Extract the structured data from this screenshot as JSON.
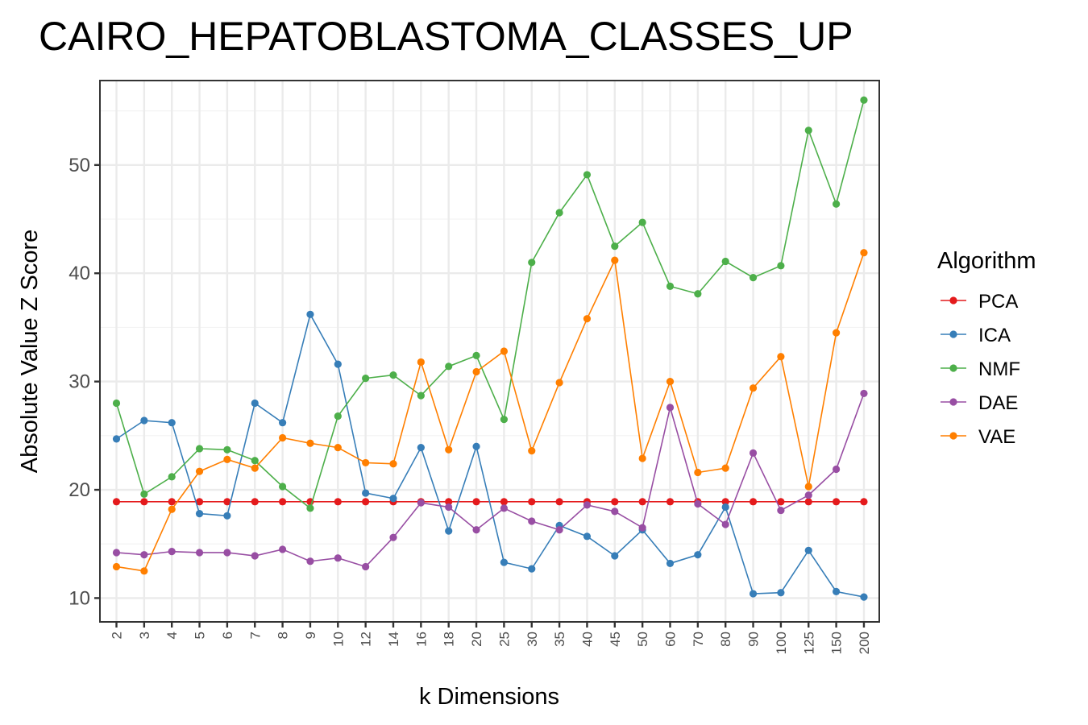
{
  "chart_data": {
    "type": "line",
    "title": "CAIRO_HEPATOBLASTOMA_CLASSES_UP",
    "xlabel": "k Dimensions",
    "ylabel": "Absolute Value Z Score",
    "categories": [
      "2",
      "3",
      "4",
      "5",
      "6",
      "7",
      "8",
      "9",
      "10",
      "12",
      "14",
      "16",
      "18",
      "20",
      "25",
      "30",
      "35",
      "40",
      "45",
      "50",
      "60",
      "70",
      "80",
      "90",
      "100",
      "125",
      "150",
      "200"
    ],
    "ylim": [
      7.8,
      57.8
    ],
    "yticks": [
      10,
      20,
      30,
      40,
      50
    ],
    "grid": true,
    "legend": {
      "title": "Algorithm",
      "position": "right"
    },
    "series": [
      {
        "name": "PCA",
        "color": "#e41a1c",
        "values": [
          18.9,
          18.9,
          18.9,
          18.9,
          18.9,
          18.9,
          18.9,
          18.9,
          18.9,
          18.9,
          18.9,
          18.9,
          18.9,
          18.9,
          18.9,
          18.9,
          18.9,
          18.9,
          18.9,
          18.9,
          18.9,
          18.9,
          18.9,
          18.9,
          18.9,
          18.9,
          18.9,
          18.9
        ]
      },
      {
        "name": "ICA",
        "color": "#377eb8",
        "values": [
          24.7,
          26.4,
          26.2,
          17.8,
          17.6,
          28.0,
          26.2,
          36.2,
          31.6,
          19.7,
          19.2,
          23.9,
          16.2,
          24.0,
          13.3,
          12.7,
          16.7,
          15.7,
          13.9,
          16.3,
          13.2,
          14.0,
          18.4,
          10.4,
          10.5,
          14.4,
          10.6,
          10.1
        ]
      },
      {
        "name": "NMF",
        "color": "#4daf4a",
        "values": [
          28.0,
          19.6,
          21.2,
          23.8,
          23.7,
          22.7,
          20.3,
          18.3,
          26.8,
          30.3,
          30.6,
          28.7,
          31.4,
          32.4,
          26.5,
          41.0,
          45.6,
          49.1,
          42.5,
          44.7,
          38.8,
          38.1,
          41.1,
          39.6,
          40.7,
          53.2,
          46.4,
          56.0
        ]
      },
      {
        "name": "DAE",
        "color": "#984ea3",
        "values": [
          14.2,
          14.0,
          14.3,
          14.2,
          14.2,
          13.9,
          14.5,
          13.4,
          13.7,
          12.9,
          15.6,
          18.8,
          18.4,
          16.3,
          18.3,
          17.1,
          16.3,
          18.6,
          18.0,
          16.5,
          27.6,
          18.7,
          16.8,
          23.4,
          18.1,
          19.5,
          21.9,
          28.9
        ]
      },
      {
        "name": "VAE",
        "color": "#ff7f00",
        "values": [
          12.9,
          12.5,
          18.2,
          21.7,
          22.8,
          22.0,
          24.8,
          24.3,
          23.9,
          22.5,
          22.4,
          31.8,
          23.7,
          30.9,
          32.8,
          23.6,
          29.9,
          35.8,
          41.2,
          22.9,
          30.0,
          21.6,
          22.0,
          29.4,
          32.3,
          20.3,
          34.5,
          41.9
        ]
      }
    ]
  }
}
